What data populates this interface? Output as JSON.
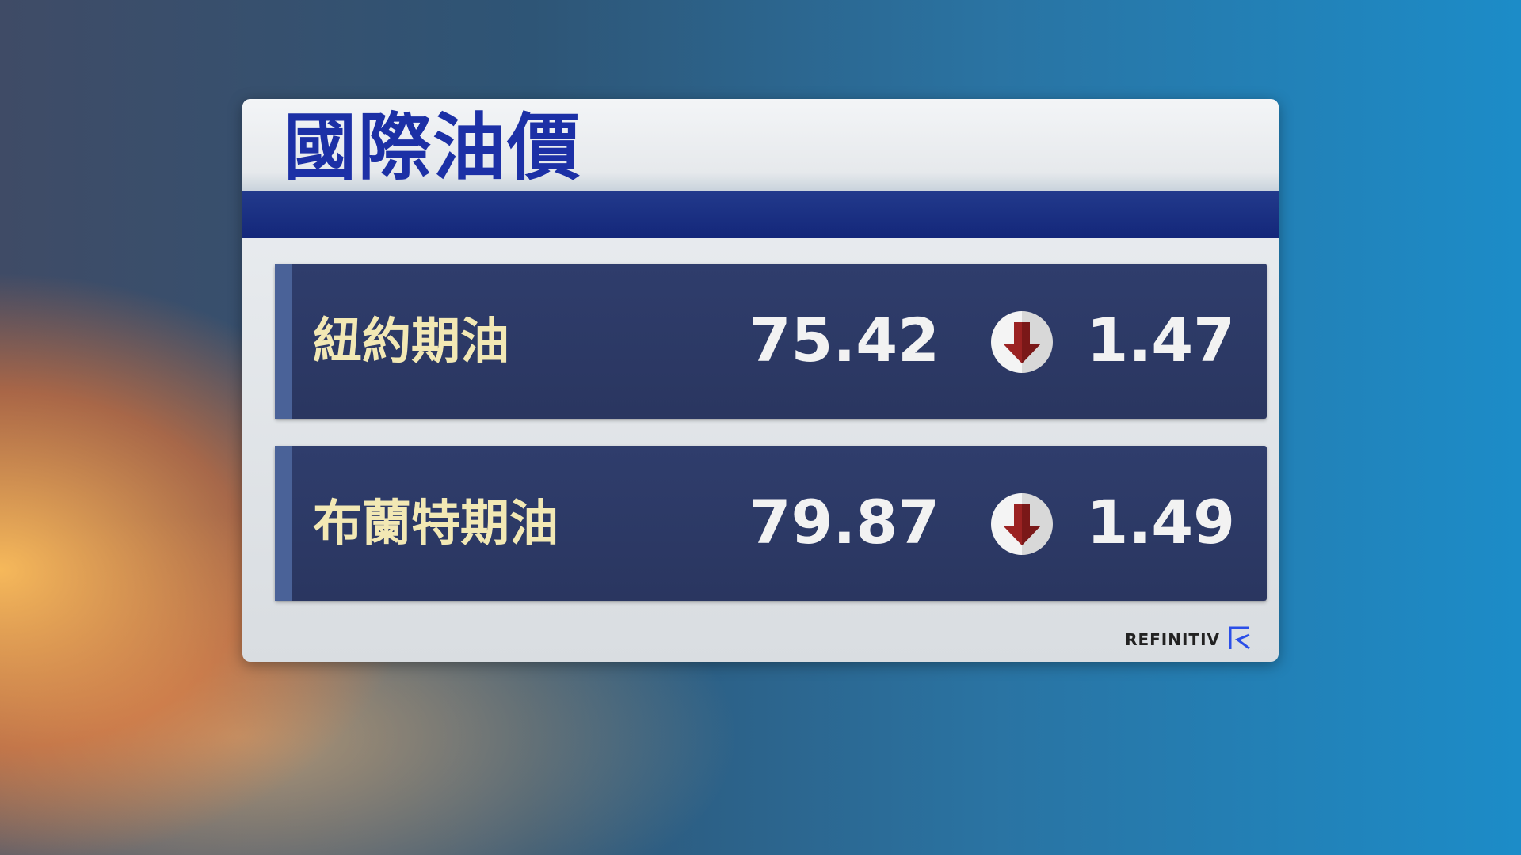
{
  "title": "國際油價",
  "rows": [
    {
      "label": "紐約期油",
      "price": "75.42",
      "direction": "down",
      "change": "1.47"
    },
    {
      "label": "布蘭特期油",
      "price": "79.87",
      "direction": "down",
      "change": "1.49"
    }
  ],
  "brand": {
    "name": "REFINITIV",
    "icon": "refinitiv-logo-icon"
  },
  "colors": {
    "title": "#1c30a6",
    "row_bg": "#2c3a66",
    "label": "#f2e8b4",
    "down_arrow": "#9b2222"
  }
}
